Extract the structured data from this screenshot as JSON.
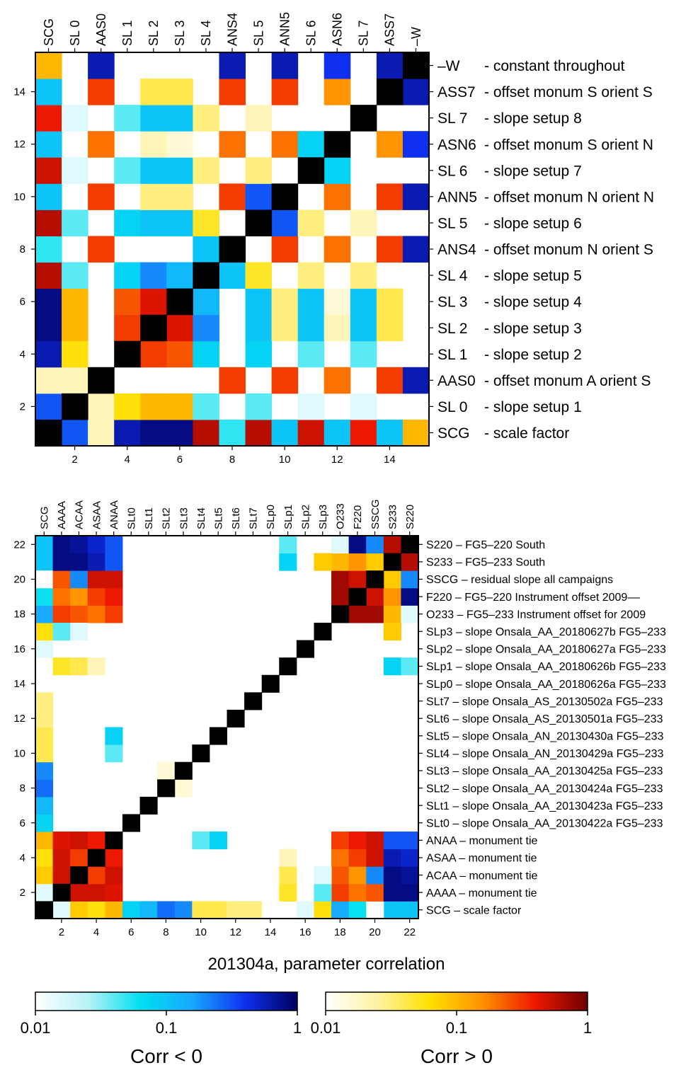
{
  "title": "201304a, parameter correlation",
  "chart_data": [
    {
      "type": "heatmap",
      "n": 15,
      "params": [
        {
          "code": "SCG",
          "desc": "- scale factor"
        },
        {
          "code": "SL 0",
          "desc": "- slope setup 1"
        },
        {
          "code": "AAS0",
          "desc": "- offset monum A orient S"
        },
        {
          "code": "SL 1",
          "desc": "- slope setup 2"
        },
        {
          "code": "SL 2",
          "desc": "- slope setup 3"
        },
        {
          "code": "SL 3",
          "desc": "- slope setup 4"
        },
        {
          "code": "SL 4",
          "desc": "- slope setup 5"
        },
        {
          "code": "ANS4",
          "desc": "- offset monum N orient S"
        },
        {
          "code": "SL 5",
          "desc": "- slope setup 6"
        },
        {
          "code": "ANN5",
          "desc": "- offset monum N orient N"
        },
        {
          "code": "SL 6",
          "desc": "- slope setup 7"
        },
        {
          "code": "ASN6",
          "desc": "- offset monum S orient N"
        },
        {
          "code": "SL 7",
          "desc": "- slope setup 8"
        },
        {
          "code": "ASS7",
          "desc": "- offset monum S orient S"
        },
        {
          "code": "–W",
          "desc": "- constant throughout"
        }
      ],
      "xticks": [
        2,
        4,
        6,
        8,
        10,
        12,
        14
      ],
      "yticks": [
        2,
        4,
        6,
        8,
        10,
        12,
        14
      ],
      "cells": [
        [
          1,
          2,
          -0.3
        ],
        [
          1,
          3,
          0.02
        ],
        [
          1,
          4,
          -0.6
        ],
        [
          1,
          5,
          -0.8
        ],
        [
          1,
          6,
          -0.8
        ],
        [
          1,
          7,
          0.6
        ],
        [
          1,
          8,
          -0.05
        ],
        [
          1,
          9,
          0.6
        ],
        [
          1,
          10,
          -0.1
        ],
        [
          1,
          11,
          0.5
        ],
        [
          1,
          12,
          -0.1
        ],
        [
          1,
          13,
          0.4
        ],
        [
          1,
          14,
          -0.1
        ],
        [
          1,
          15,
          0.1
        ],
        [
          2,
          3,
          0.02
        ],
        [
          2,
          4,
          0.06
        ],
        [
          2,
          5,
          0.1
        ],
        [
          2,
          6,
          0.1
        ],
        [
          2,
          7,
          -0.04
        ],
        [
          2,
          9,
          -0.04
        ],
        [
          2,
          11,
          -0.015
        ],
        [
          2,
          13,
          -0.015
        ],
        [
          3,
          8,
          0.3
        ],
        [
          3,
          10,
          0.3
        ],
        [
          3,
          12,
          0.2
        ],
        [
          3,
          14,
          0.3
        ],
        [
          3,
          15,
          -0.6
        ],
        [
          4,
          5,
          0.3
        ],
        [
          4,
          6,
          0.25
        ],
        [
          4,
          7,
          -0.08
        ],
        [
          4,
          9,
          -0.08
        ],
        [
          4,
          11,
          -0.04
        ],
        [
          4,
          13,
          -0.04
        ],
        [
          5,
          6,
          0.45
        ],
        [
          5,
          7,
          -0.2
        ],
        [
          5,
          9,
          -0.1
        ],
        [
          5,
          10,
          0.03
        ],
        [
          5,
          11,
          -0.1
        ],
        [
          5,
          12,
          0.02
        ],
        [
          5,
          13,
          -0.1
        ],
        [
          5,
          14,
          0.04
        ],
        [
          6,
          7,
          -0.12
        ],
        [
          6,
          9,
          -0.1
        ],
        [
          6,
          10,
          0.03
        ],
        [
          6,
          11,
          -0.1
        ],
        [
          6,
          12,
          0.015
        ],
        [
          6,
          13,
          -0.1
        ],
        [
          6,
          14,
          0.04
        ],
        [
          7,
          8,
          -0.1
        ],
        [
          7,
          9,
          0.05
        ],
        [
          7,
          11,
          0.03
        ],
        [
          7,
          13,
          0.03
        ],
        [
          8,
          10,
          0.3
        ],
        [
          8,
          12,
          0.2
        ],
        [
          8,
          14,
          0.3
        ],
        [
          8,
          15,
          -0.6
        ],
        [
          9,
          10,
          -0.3
        ],
        [
          9,
          11,
          0.03
        ],
        [
          9,
          13,
          0.02
        ],
        [
          10,
          12,
          0.2
        ],
        [
          10,
          14,
          0.3
        ],
        [
          10,
          15,
          -0.6
        ],
        [
          11,
          12,
          -0.08
        ],
        [
          12,
          14,
          0.15
        ],
        [
          12,
          15,
          -0.4
        ],
        [
          14,
          15,
          -0.6
        ]
      ]
    },
    {
      "type": "heatmap",
      "n": 22,
      "params": [
        {
          "code": "SCG",
          "desc": "SCG –  scale factor"
        },
        {
          "code": "AAAA",
          "desc": "AAAA – monument tie"
        },
        {
          "code": "ACAA",
          "desc": "ACAA – monument tie"
        },
        {
          "code": "ASAA",
          "desc": "ASAA – monument tie"
        },
        {
          "code": "ANAA",
          "desc": "ANAA – monument tie"
        },
        {
          "code": "SLt0",
          "desc": "SLt0 – slope Onsala_AA_20130422a FG5–233"
        },
        {
          "code": "SLt1",
          "desc": "SLt1 – slope Onsala_AA_20130423a FG5–233"
        },
        {
          "code": "SLt2",
          "desc": "SLt2 – slope Onsala_AA_20130424a FG5–233"
        },
        {
          "code": "SLt3",
          "desc": "SLt3 – slope Onsala_AA_20130425a FG5–233"
        },
        {
          "code": "SLt4",
          "desc": "SLt4 – slope Onsala_AN_20130429a FG5–233"
        },
        {
          "code": "SLt5",
          "desc": "SLt5 – slope Onsala_AN_20130430a FG5–233"
        },
        {
          "code": "SLt6",
          "desc": "SLt6 – slope Onsala_AS_20130501a FG5–233"
        },
        {
          "code": "SLt7",
          "desc": "SLt7 – slope Onsala_AS_20130502a FG5–233"
        },
        {
          "code": "SLp0",
          "desc": "SLp0 – slope Onsala_AA_20180626a FG5–233"
        },
        {
          "code": "SLp1",
          "desc": "SLp1 – slope Onsala_AA_20180626b FG5–233"
        },
        {
          "code": "SLp2",
          "desc": "SLp2 – slope Onsala_AA_20180627a FG5–233"
        },
        {
          "code": "SLp3",
          "desc": "SLp3 – slope Onsala_AA_20180627b FG5–233"
        },
        {
          "code": "O233",
          "desc": "O233 – FG5–233 Instrument offset for 2009"
        },
        {
          "code": "F220",
          "desc": "F220 – FG5–220 Instrument offset 2009––"
        },
        {
          "code": "SSCG",
          "desc": "SSCG – residual slope all campaigns"
        },
        {
          "code": "S233",
          "desc": "S233 – FG5–233 South"
        },
        {
          "code": "S220",
          "desc": "S220 – FG5–220 South"
        }
      ],
      "xticks": [
        2,
        4,
        6,
        8,
        10,
        12,
        14,
        16,
        18,
        20,
        22
      ],
      "yticks": [
        2,
        4,
        6,
        8,
        10,
        12,
        14,
        16,
        18,
        20,
        22
      ],
      "cells": [
        [
          1,
          2,
          -0.015
        ],
        [
          1,
          3,
          0.08
        ],
        [
          1,
          4,
          0.06
        ],
        [
          1,
          5,
          0.1
        ],
        [
          1,
          6,
          -0.08
        ],
        [
          1,
          7,
          -0.12
        ],
        [
          1,
          8,
          -0.25
        ],
        [
          1,
          9,
          -0.2
        ],
        [
          1,
          10,
          0.04
        ],
        [
          1,
          11,
          0.04
        ],
        [
          1,
          12,
          0.03
        ],
        [
          1,
          13,
          0.03
        ],
        [
          1,
          16,
          -0.015
        ],
        [
          1,
          17,
          0.06
        ],
        [
          1,
          18,
          -0.15
        ],
        [
          1,
          19,
          -0.06
        ],
        [
          1,
          21,
          -0.1
        ],
        [
          1,
          22,
          -0.1
        ],
        [
          1,
          20,
          0.01
        ],
        [
          2,
          3,
          0.5
        ],
        [
          2,
          4,
          0.5
        ],
        [
          2,
          5,
          0.45
        ],
        [
          2,
          18,
          0.3
        ],
        [
          2,
          19,
          0.2
        ],
        [
          2,
          20,
          0.25
        ],
        [
          2,
          21,
          -0.8
        ],
        [
          2,
          22,
          -0.8
        ],
        [
          2,
          15,
          0.05
        ],
        [
          2,
          17,
          -0.04
        ],
        [
          3,
          4,
          0.3
        ],
        [
          3,
          5,
          0.5
        ],
        [
          3,
          18,
          0.25
        ],
        [
          3,
          19,
          0.15
        ],
        [
          3,
          20,
          -0.2
        ],
        [
          3,
          21,
          -0.8
        ],
        [
          3,
          22,
          -0.7
        ],
        [
          3,
          15,
          0.04
        ],
        [
          3,
          17,
          -0.015
        ],
        [
          4,
          5,
          0.4
        ],
        [
          4,
          18,
          0.2
        ],
        [
          4,
          19,
          0.3
        ],
        [
          4,
          20,
          0.5
        ],
        [
          4,
          21,
          -0.6
        ],
        [
          4,
          22,
          -0.5
        ],
        [
          4,
          15,
          0.02
        ],
        [
          5,
          18,
          0.3
        ],
        [
          5,
          19,
          0.4
        ],
        [
          5,
          20,
          0.5
        ],
        [
          5,
          21,
          -0.3
        ],
        [
          5,
          22,
          -0.3
        ],
        [
          5,
          10,
          -0.04
        ],
        [
          5,
          11,
          -0.08
        ],
        [
          8,
          9,
          0.015
        ],
        [
          18,
          19,
          0.7
        ],
        [
          18,
          20,
          0.7
        ],
        [
          18,
          21,
          0.1
        ],
        [
          18,
          22,
          -0.015
        ],
        [
          19,
          20,
          0.5
        ],
        [
          19,
          21,
          0.15
        ],
        [
          19,
          22,
          -0.8
        ],
        [
          20,
          21,
          0.08
        ],
        [
          20,
          22,
          -0.2
        ],
        [
          21,
          22,
          0.6
        ],
        [
          15,
          21,
          -0.08
        ],
        [
          15,
          22,
          -0.04
        ],
        [
          17,
          21,
          0.08
        ]
      ]
    }
  ],
  "colorbars": [
    {
      "label": "Corr < 0",
      "ticks": [
        "0.01",
        "0.1",
        "1"
      ]
    },
    {
      "label": "Corr > 0",
      "ticks": [
        "0.01",
        "0.1",
        "1"
      ]
    }
  ]
}
